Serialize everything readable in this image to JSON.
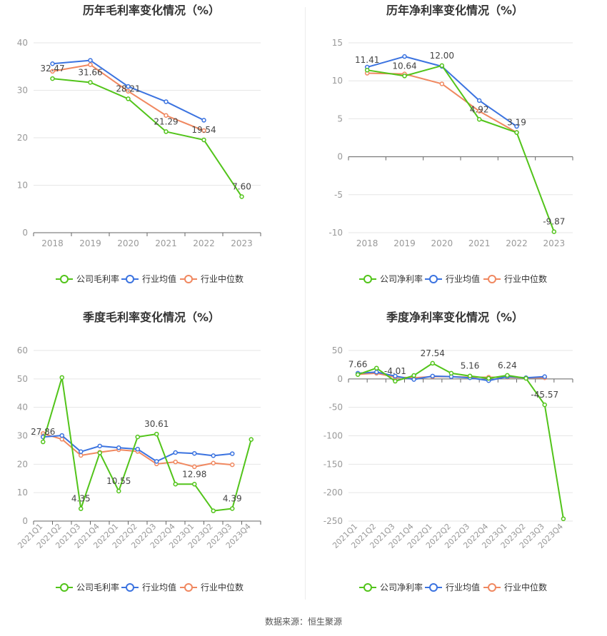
{
  "colors": {
    "company": "#52c41a",
    "industry_avg": "#3b73e0",
    "industry_median": "#f08860",
    "axis": "#999999",
    "grid": "#e6e6e6",
    "label": "#444444"
  },
  "source": "数据来源：恒生聚源",
  "chart_data": [
    {
      "type": "line",
      "title": "历年毛利率变化情况（%）",
      "categories": [
        "2018",
        "2019",
        "2020",
        "2021",
        "2022",
        "2023"
      ],
      "yticks": [
        0,
        10,
        20,
        30,
        40
      ],
      "ylim": [
        0,
        40
      ],
      "series": [
        {
          "name": "公司毛利率",
          "values": [
            32.47,
            31.66,
            28.21,
            21.29,
            19.54,
            7.6
          ]
        },
        {
          "name": "行业均值",
          "values": [
            35.6,
            36.3,
            30.8,
            27.6,
            23.7,
            null
          ]
        },
        {
          "name": "行业中位数",
          "values": [
            34.0,
            35.4,
            29.8,
            24.7,
            21.5,
            null
          ]
        }
      ],
      "data_labels": [
        "32.47",
        "31.66",
        "28.21",
        "21.29",
        "19.54",
        "7.60"
      ],
      "legend": [
        "公司毛利率",
        "行业均值",
        "行业中位数"
      ],
      "legend_position": "bottom"
    },
    {
      "type": "line",
      "title": "历年净利率变化情况（%）",
      "categories": [
        "2018",
        "2019",
        "2020",
        "2021",
        "2022",
        "2023"
      ],
      "yticks": [
        -10,
        -5,
        0,
        5,
        10,
        15
      ],
      "ylim": [
        -10,
        15
      ],
      "series": [
        {
          "name": "公司净利率",
          "values": [
            11.41,
            10.64,
            12.0,
            4.92,
            3.19,
            -9.87
          ]
        },
        {
          "name": "行业均值",
          "values": [
            11.8,
            13.2,
            11.9,
            7.4,
            4.0,
            null
          ]
        },
        {
          "name": "行业中位数",
          "values": [
            11.0,
            10.9,
            9.6,
            6.0,
            3.2,
            null
          ]
        }
      ],
      "data_labels": [
        "11.41",
        "10.64",
        "12.00",
        "4.92",
        "3.19",
        "-9.87"
      ],
      "legend": [
        "公司净利率",
        "行业均值",
        "行业中位数"
      ],
      "legend_position": "bottom"
    },
    {
      "type": "line",
      "title": "季度毛利率变化情况（%）",
      "categories": [
        "2021Q1",
        "2021Q2",
        "2021Q3",
        "2021Q4",
        "2022Q1",
        "2022Q2",
        "2022Q3",
        "2022Q4",
        "2023Q1",
        "2023Q2",
        "2023Q3",
        "2023Q4"
      ],
      "yticks": [
        0,
        10,
        20,
        30,
        40,
        50,
        60
      ],
      "ylim": [
        0,
        60
      ],
      "series": [
        {
          "name": "公司毛利率",
          "values": [
            27.86,
            50.5,
            4.35,
            24.0,
            10.55,
            29.6,
            30.61,
            13.0,
            12.98,
            3.6,
            4.39,
            28.7
          ]
        },
        {
          "name": "行业均值",
          "values": [
            29.6,
            30.1,
            24.4,
            26.4,
            25.8,
            25.3,
            21.0,
            24.1,
            23.8,
            23.0,
            23.7,
            null
          ]
        },
        {
          "name": "行业中位数",
          "values": [
            30.8,
            28.8,
            23.1,
            24.2,
            25.1,
            24.5,
            20.1,
            20.8,
            19.1,
            20.4,
            19.8,
            null
          ]
        }
      ],
      "data_labels": [
        {
          "index": 0,
          "text": "27.86"
        },
        {
          "index": 2,
          "text": "4.35"
        },
        {
          "index": 4,
          "text": "10.55"
        },
        {
          "index": 6,
          "text": "30.61"
        },
        {
          "index": 8,
          "text": "12.98"
        },
        {
          "index": 10,
          "text": "4.39"
        }
      ],
      "legend": [
        "公司毛利率",
        "行业均值",
        "行业中位数"
      ],
      "legend_position": "bottom"
    },
    {
      "type": "line",
      "title": "季度净利率变化情况（%）",
      "categories": [
        "2021Q1",
        "2021Q2",
        "2021Q3",
        "2021Q4",
        "2022Q1",
        "2022Q2",
        "2022Q3",
        "2022Q4",
        "2023Q1",
        "2023Q2",
        "2023Q3",
        "2023Q4"
      ],
      "yticks": [
        -250,
        -200,
        -150,
        -100,
        -50,
        0,
        50
      ],
      "ylim": [
        -250,
        50
      ],
      "series": [
        {
          "name": "公司净利率",
          "values": [
            7.66,
            19.0,
            -4.01,
            6.0,
            27.54,
            10.0,
            5.16,
            1.0,
            6.24,
            1.0,
            -45.57,
            -246.0
          ]
        },
        {
          "name": "行业均值",
          "values": [
            10.0,
            12.0,
            5.0,
            -1.0,
            5.0,
            4.0,
            2.0,
            -3.0,
            4.0,
            2.0,
            4.0,
            null
          ]
        },
        {
          "name": "行业中位数",
          "values": [
            8.0,
            10.0,
            3.0,
            2.0,
            4.0,
            4.0,
            3.0,
            3.0,
            3.0,
            2.0,
            2.0,
            null
          ]
        }
      ],
      "data_labels": [
        {
          "index": 0,
          "text": "7.66"
        },
        {
          "index": 2,
          "text": "-4.01"
        },
        {
          "index": 4,
          "text": "27.54"
        },
        {
          "index": 6,
          "text": "5.16"
        },
        {
          "index": 8,
          "text": "6.24"
        },
        {
          "index": 10,
          "text": "-45.57"
        }
      ],
      "legend": [
        "公司净利率",
        "行业均值",
        "行业中位数"
      ],
      "legend_position": "bottom"
    }
  ]
}
